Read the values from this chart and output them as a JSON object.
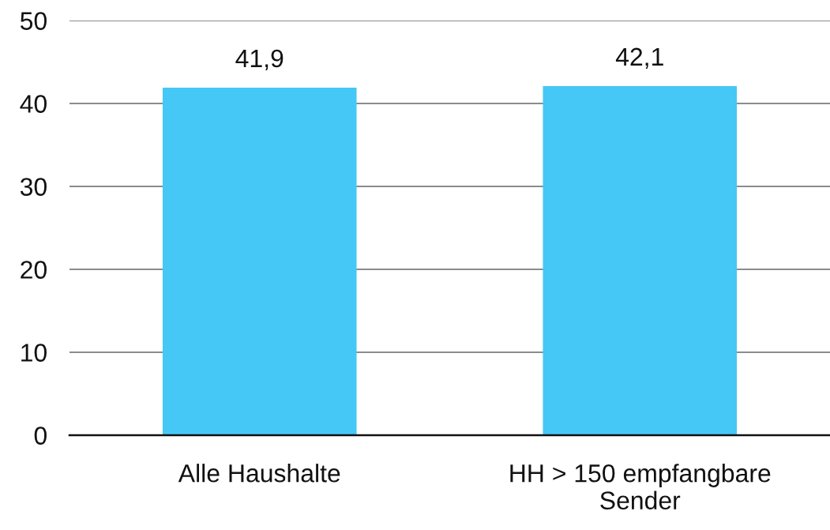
{
  "chart_data": {
    "type": "bar",
    "categories": [
      "Alle Haushalte",
      "HH > 150 empfangbare\nSender"
    ],
    "values": [
      41.9,
      42.1
    ],
    "color": "#45c8f5",
    "value_labels": [
      "41,9",
      "42,1"
    ],
    "ylim": [
      0,
      50
    ],
    "yticks": [
      0,
      10,
      20,
      30,
      40,
      50
    ],
    "grid": "y"
  }
}
